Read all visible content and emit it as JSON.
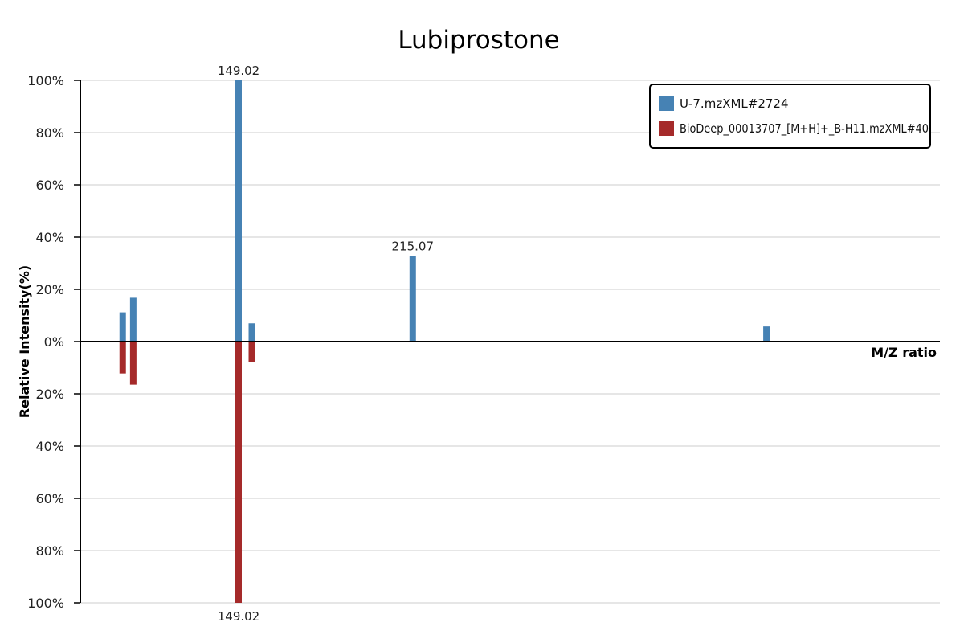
{
  "chart_data": {
    "type": "bar",
    "title": "Lubiprostone",
    "ylabel": "Relative Intensity(%)",
    "xlabel": "M/Z ratio",
    "ylim": [
      -100,
      100
    ],
    "yticks": [
      {
        "value": 100,
        "label": "100%"
      },
      {
        "value": 80,
        "label": "80%"
      },
      {
        "value": 60,
        "label": "60%"
      },
      {
        "value": 40,
        "label": "40%"
      },
      {
        "value": 20,
        "label": "20%"
      },
      {
        "value": 0,
        "label": "0%"
      },
      {
        "value": -20,
        "label": "20%"
      },
      {
        "value": -40,
        "label": "40%"
      },
      {
        "value": -60,
        "label": "60%"
      },
      {
        "value": -80,
        "label": "80%"
      },
      {
        "value": -100,
        "label": "100%"
      }
    ],
    "grid": true,
    "legend_position": "top-right",
    "series": [
      {
        "name": "U-7.mzXML#2724",
        "color": "#4682b4",
        "direction": "up",
        "peaks": [
          {
            "mz": 105.07,
            "intensity": 11.2
          },
          {
            "mz": 109.07,
            "intensity": 16.8
          },
          {
            "mz": 149.02,
            "intensity": 100,
            "label": "149.02"
          },
          {
            "mz": 154.05,
            "intensity": 7.0
          },
          {
            "mz": 215.07,
            "intensity": 32.8,
            "label": "215.07"
          },
          {
            "mz": 349.22,
            "intensity": 5.8
          }
        ]
      },
      {
        "name": "BioDeep_00013707_[M+H]+_B-H11.mzXML#40",
        "color": "#a52a2a",
        "direction": "down",
        "peaks": [
          {
            "mz": 105.07,
            "intensity": 12.2
          },
          {
            "mz": 109.07,
            "intensity": 16.5
          },
          {
            "mz": 149.02,
            "intensity": 100,
            "label": "149.02"
          },
          {
            "mz": 154.05,
            "intensity": 7.8
          }
        ]
      }
    ],
    "x_range": [
      89.0,
      415.0
    ]
  }
}
